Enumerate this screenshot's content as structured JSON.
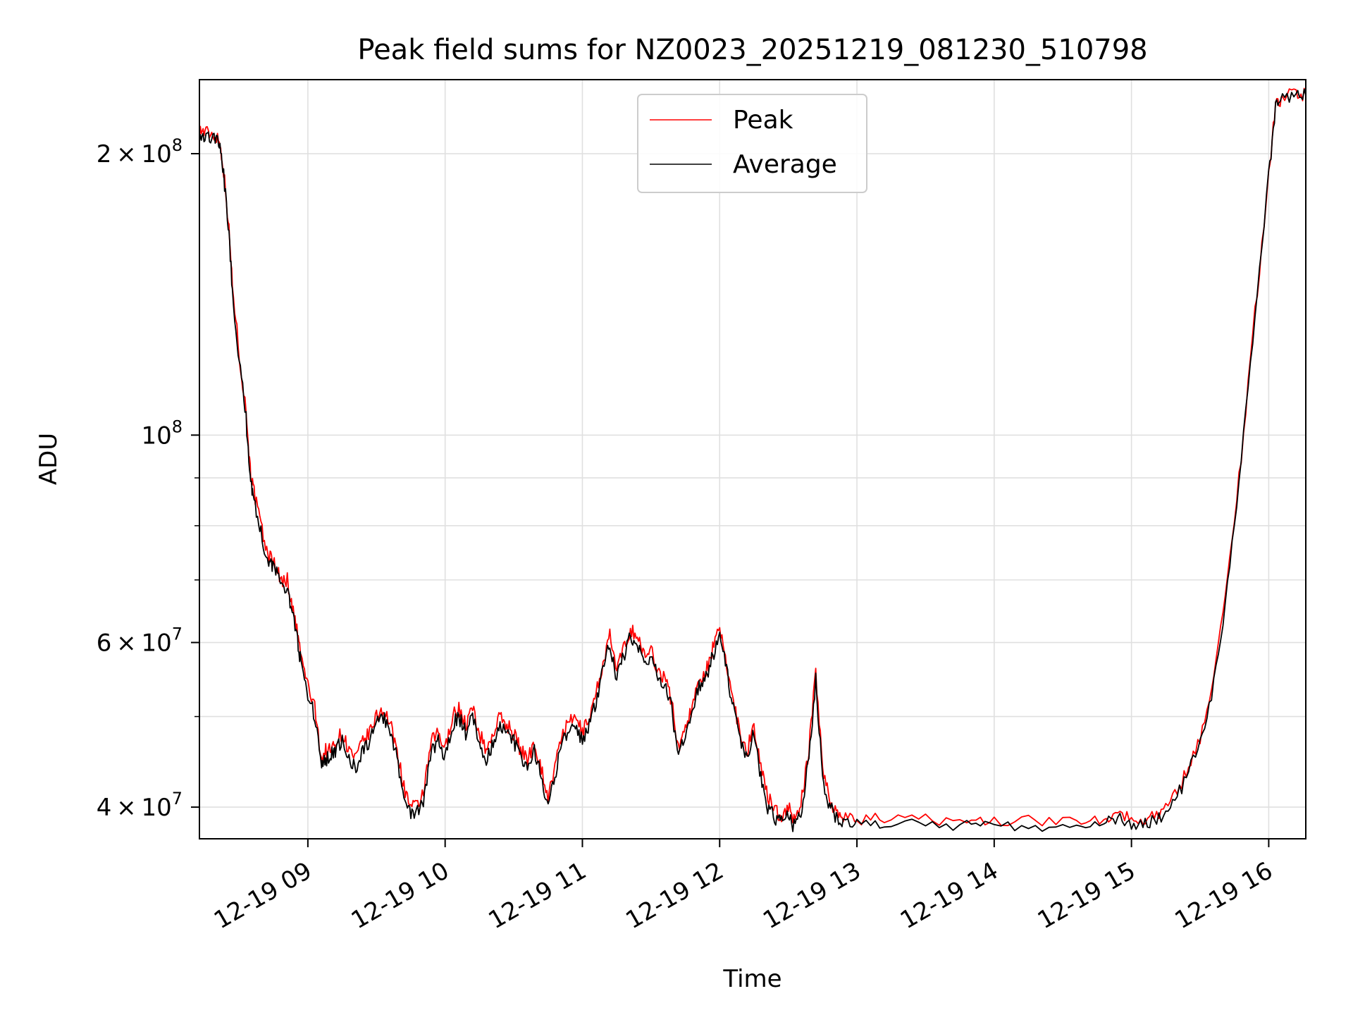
{
  "chart_data": {
    "type": "line",
    "title": "Peak field sums for NZ0023_20251219_081230_510798",
    "xlabel": "Time",
    "ylabel": "ADU",
    "x_unit": "hours (Dec 19, local time)",
    "xlim": [
      8.21,
      16.27
    ],
    "ylim": [
      37000000,
      240000000
    ],
    "y_scale": "log",
    "grid": true,
    "legend_position": "top-center",
    "x_ticks": [
      {
        "value": 9,
        "label": "12-19 09"
      },
      {
        "value": 10,
        "label": "12-19 10"
      },
      {
        "value": 11,
        "label": "12-19 11"
      },
      {
        "value": 12,
        "label": "12-19 12"
      },
      {
        "value": 13,
        "label": "12-19 13"
      },
      {
        "value": 14,
        "label": "12-19 14"
      },
      {
        "value": 15,
        "label": "12-19 15"
      },
      {
        "value": 16,
        "label": "12-19 16"
      }
    ],
    "y_ticks": [
      {
        "value": 200000000,
        "mantissa": "2",
        "exponent": "8"
      },
      {
        "value": 100000000,
        "mantissa": "",
        "exponent": "8"
      },
      {
        "value": 60000000,
        "mantissa": "6",
        "exponent": "7"
      },
      {
        "value": 40000000,
        "mantissa": "4",
        "exponent": "7"
      }
    ],
    "y_minor_grid": [
      50000000,
      70000000,
      80000000,
      90000000
    ],
    "series": [
      {
        "name": "Peak",
        "color": "#ff0000",
        "x": [
          8.21,
          8.25,
          8.3,
          8.35,
          8.38,
          8.42,
          8.45,
          8.5,
          8.55,
          8.58,
          8.6,
          8.65,
          8.7,
          8.73,
          8.76,
          8.8,
          8.85,
          8.88,
          8.92,
          8.95,
          9.0,
          9.05,
          9.1,
          9.13,
          9.17,
          9.2,
          9.25,
          9.3,
          9.35,
          9.4,
          9.45,
          9.5,
          9.55,
          9.6,
          9.65,
          9.7,
          9.75,
          9.8,
          9.85,
          9.9,
          9.95,
          10.0,
          10.05,
          10.1,
          10.15,
          10.2,
          10.25,
          10.3,
          10.35,
          10.4,
          10.45,
          10.5,
          10.55,
          10.6,
          10.65,
          10.7,
          10.75,
          10.8,
          10.85,
          10.9,
          10.95,
          11.0,
          11.05,
          11.1,
          11.15,
          11.2,
          11.25,
          11.3,
          11.35,
          11.4,
          11.45,
          11.5,
          11.55,
          11.6,
          11.65,
          11.7,
          11.75,
          11.8,
          11.85,
          11.9,
          11.95,
          12.0,
          12.05,
          12.1,
          12.15,
          12.2,
          12.25,
          12.3,
          12.35,
          12.4,
          12.45,
          12.5,
          12.55,
          12.6,
          12.65,
          12.7,
          12.75,
          12.8,
          12.85,
          12.9,
          13.0,
          13.2,
          13.5,
          13.8,
          14.0,
          14.3,
          14.6,
          14.8,
          14.9,
          15.0,
          15.1,
          15.2,
          15.3,
          15.4,
          15.5,
          15.6,
          15.7,
          15.8,
          15.9,
          16.0,
          16.05,
          16.1,
          16.2,
          16.27
        ],
        "values": [
          212000000,
          211000000,
          210000000,
          208000000,
          196000000,
          170000000,
          145000000,
          122000000,
          106000000,
          92000000,
          88000000,
          81000000,
          75000000,
          74000000,
          73000000,
          70000000,
          70000000,
          66000000,
          62000000,
          58000000,
          54000000,
          51000000,
          45000000,
          46000000,
          46000000,
          47000000,
          48000000,
          46000000,
          45000000,
          47000000,
          48000000,
          50000000,
          51000000,
          49000000,
          46000000,
          42000000,
          40000000,
          40000000,
          42000000,
          47000000,
          48000000,
          46000000,
          50000000,
          51000000,
          49000000,
          51000000,
          48000000,
          46000000,
          48000000,
          50000000,
          49000000,
          48000000,
          46000000,
          45000000,
          47000000,
          44000000,
          41000000,
          44000000,
          48000000,
          49000000,
          50000000,
          48000000,
          50000000,
          53000000,
          57000000,
          61000000,
          56000000,
          59000000,
          62000000,
          61000000,
          58000000,
          59000000,
          56000000,
          55000000,
          52000000,
          46000000,
          49000000,
          51000000,
          55000000,
          56000000,
          59000000,
          62000000,
          57000000,
          52000000,
          48000000,
          46000000,
          49000000,
          44000000,
          41000000,
          40000000,
          39000000,
          40000000,
          38500000,
          41000000,
          46000000,
          56000000,
          44000000,
          41000000,
          39500000,
          39000000,
          38800000,
          38900000,
          38800000,
          38700000,
          38700000,
          38700000,
          38700000,
          38900000,
          39500000,
          38800000,
          38900000,
          39500000,
          40800000,
          43500000,
          47500000,
          55000000,
          70000000,
          95000000,
          135000000,
          190000000,
          225000000,
          230000000,
          232000000,
          232000000
        ]
      },
      {
        "name": "Average",
        "color": "#000000",
        "x": [
          8.21,
          8.25,
          8.3,
          8.35,
          8.38,
          8.42,
          8.45,
          8.5,
          8.55,
          8.58,
          8.6,
          8.65,
          8.7,
          8.73,
          8.76,
          8.8,
          8.85,
          8.88,
          8.92,
          8.95,
          9.0,
          9.05,
          9.1,
          9.13,
          9.17,
          9.2,
          9.25,
          9.3,
          9.35,
          9.4,
          9.45,
          9.5,
          9.55,
          9.6,
          9.65,
          9.7,
          9.75,
          9.8,
          9.85,
          9.9,
          9.95,
          10.0,
          10.05,
          10.1,
          10.15,
          10.2,
          10.25,
          10.3,
          10.35,
          10.4,
          10.45,
          10.5,
          10.55,
          10.6,
          10.65,
          10.7,
          10.75,
          10.8,
          10.85,
          10.9,
          10.95,
          11.0,
          11.05,
          11.1,
          11.15,
          11.2,
          11.25,
          11.3,
          11.35,
          11.4,
          11.45,
          11.5,
          11.55,
          11.6,
          11.65,
          11.7,
          11.75,
          11.8,
          11.85,
          11.9,
          11.95,
          12.0,
          12.05,
          12.1,
          12.15,
          12.2,
          12.25,
          12.3,
          12.35,
          12.4,
          12.45,
          12.5,
          12.55,
          12.6,
          12.65,
          12.7,
          12.75,
          12.8,
          12.85,
          12.9,
          13.0,
          13.2,
          13.5,
          13.8,
          14.0,
          14.3,
          14.6,
          14.8,
          14.9,
          15.0,
          15.1,
          15.2,
          15.3,
          15.4,
          15.5,
          15.6,
          15.7,
          15.8,
          15.9,
          16.0,
          16.05,
          16.1,
          16.2,
          16.27
        ],
        "values": [
          210000000,
          209000000,
          208000000,
          206000000,
          194000000,
          168000000,
          143000000,
          120000000,
          104000000,
          90500000,
          86500000,
          79500000,
          74000000,
          73000000,
          72000000,
          69000000,
          69000000,
          65000000,
          61000000,
          57000000,
          53000000,
          50000000,
          44000000,
          45000000,
          45500000,
          46000000,
          47000000,
          45000000,
          44000000,
          46000000,
          47000000,
          49000000,
          50000000,
          48000000,
          45000000,
          41000000,
          39500000,
          39500000,
          41000000,
          46000000,
          47000000,
          45000000,
          49000000,
          50000000,
          48000000,
          50000000,
          47000000,
          45000000,
          47000000,
          49000000,
          48000000,
          47000000,
          45000000,
          44000000,
          46000000,
          43000000,
          40000000,
          43000000,
          47000000,
          48000000,
          49000000,
          47000000,
          49000000,
          52000000,
          56000000,
          60000000,
          55000000,
          58000000,
          61000000,
          60000000,
          57000000,
          58000000,
          55000000,
          54000000,
          51000000,
          45000000,
          48000000,
          50000000,
          54000000,
          55000000,
          58000000,
          61000000,
          56000000,
          51000000,
          47000000,
          45000000,
          48000000,
          43000000,
          40000000,
          39000000,
          38500000,
          39000000,
          38000000,
          40000000,
          45000000,
          55000000,
          43000000,
          40000000,
          39000000,
          38500000,
          38300000,
          38400000,
          38300000,
          38200000,
          38200000,
          38200000,
          38200000,
          38400000,
          39000000,
          38300000,
          38400000,
          39000000,
          40300000,
          43000000,
          47000000,
          54000000,
          69000000,
          94000000,
          134000000,
          189000000,
          224000000,
          229000000,
          231000000,
          231000000
        ]
      }
    ]
  }
}
